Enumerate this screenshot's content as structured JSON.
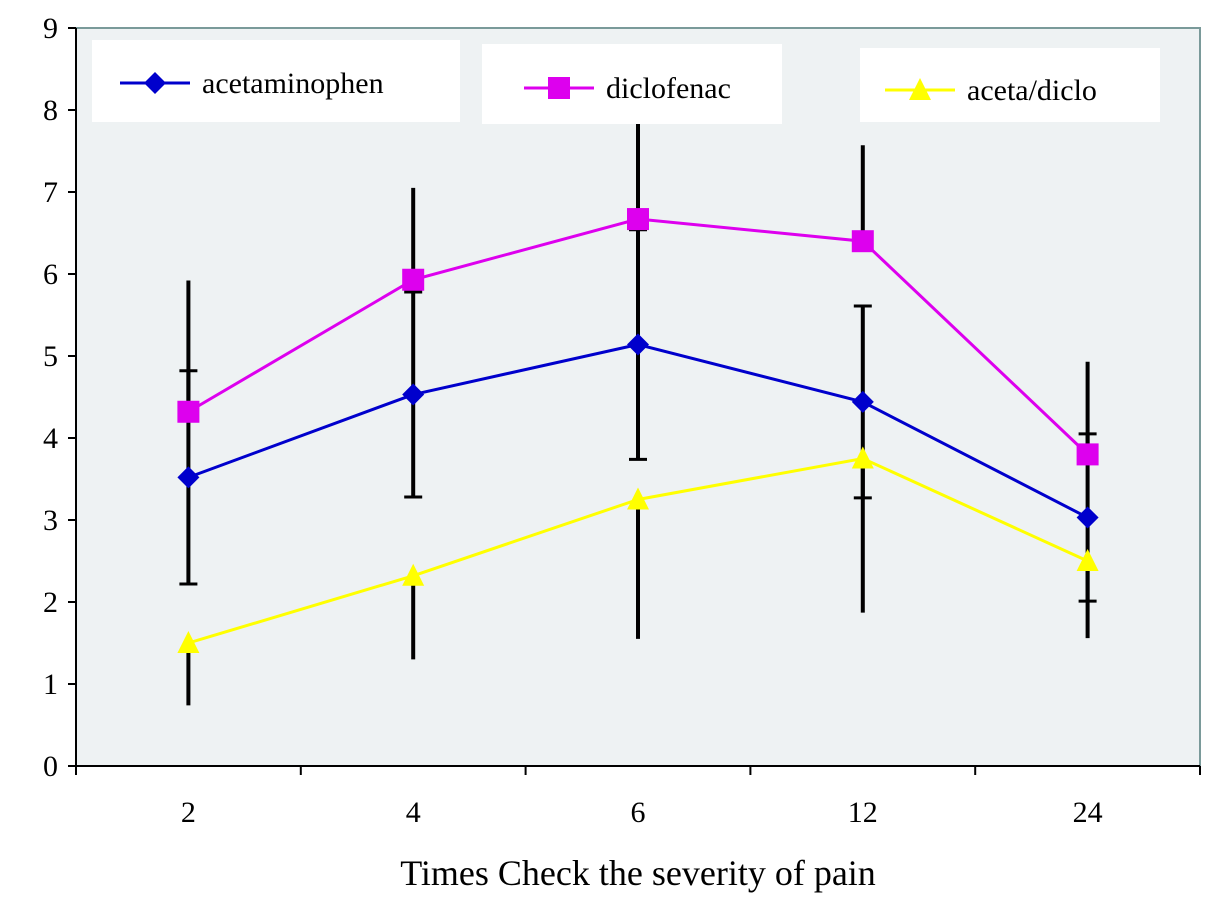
{
  "chart_data": {
    "type": "line",
    "title": "",
    "xlabel": "Times Check the severity of pain",
    "ylabel": "",
    "categories": [
      "2",
      "4",
      "6",
      "12",
      "24"
    ],
    "ylim": [
      0,
      9
    ],
    "yticks": [
      "0",
      "1",
      "2",
      "3",
      "4",
      "5",
      "6",
      "7",
      "8",
      "9"
    ],
    "grid": false,
    "legend_position": "top",
    "plot_background": "#EEF2F3",
    "series": [
      {
        "name": "acetaminophen",
        "color": "#0000CC",
        "marker": "diamond",
        "values": [
          3.52,
          4.53,
          5.14,
          4.44,
          3.03
        ],
        "error": [
          1.3,
          1.25,
          1.4,
          1.17,
          1.02
        ],
        "error_direction": "both"
      },
      {
        "name": "diclofenac",
        "color": "#DD00EE",
        "marker": "square",
        "values": [
          4.32,
          5.93,
          6.67,
          6.4,
          3.8
        ],
        "error": [
          1.6,
          1.12,
          1.2,
          1.17,
          1.13
        ],
        "error_direction": "up"
      },
      {
        "name": "aceta/diclo",
        "color": "#FFFF00",
        "marker": "triangle",
        "values": [
          1.5,
          2.32,
          3.25,
          3.75,
          2.5
        ],
        "error": [
          0.76,
          1.02,
          1.7,
          1.88,
          0.94
        ],
        "error_direction": "down"
      }
    ]
  }
}
